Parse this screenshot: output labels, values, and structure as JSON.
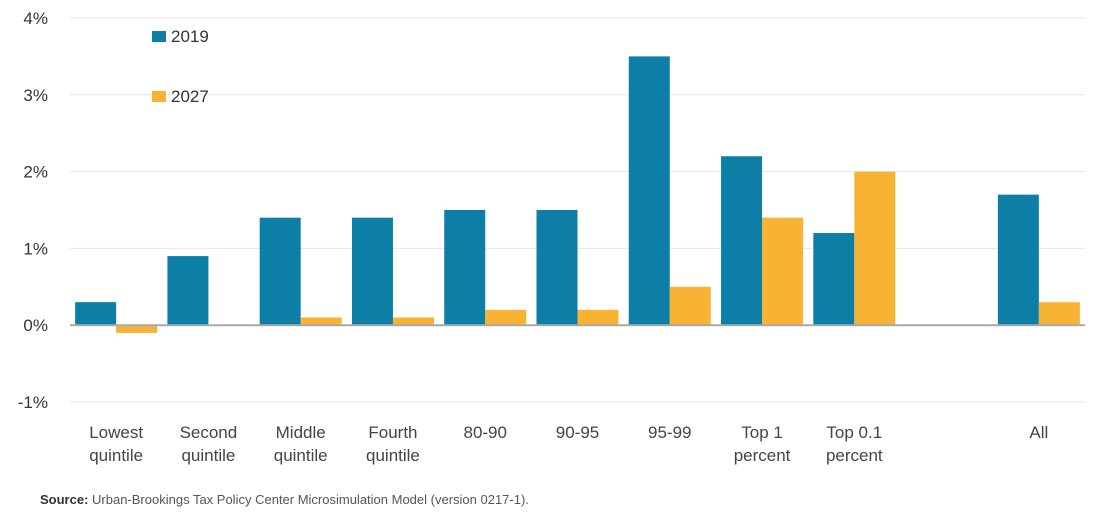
{
  "chart_data": {
    "type": "bar",
    "categories": [
      [
        "Lowest",
        "quintile"
      ],
      [
        "Second",
        "quintile"
      ],
      [
        "Middle",
        "quintile"
      ],
      [
        "Fourth",
        "quintile"
      ],
      [
        "80-90"
      ],
      [
        "90-95"
      ],
      [
        "95-99"
      ],
      [
        "Top 1",
        "percent"
      ],
      [
        "Top 0.1",
        "percent"
      ],
      [],
      [
        "All"
      ]
    ],
    "series": [
      {
        "name": "2019",
        "color": "#0d7ea6",
        "values": [
          0.3,
          0.9,
          1.4,
          1.4,
          1.5,
          1.5,
          3.5,
          2.2,
          1.2,
          null,
          1.7
        ]
      },
      {
        "name": "2027",
        "color": "#f8b234",
        "values": [
          -0.1,
          0.0,
          0.1,
          0.1,
          0.2,
          0.2,
          0.5,
          1.4,
          2.0,
          null,
          0.3
        ]
      }
    ],
    "ylim": [
      -1,
      4
    ],
    "yticks": [
      "-1%",
      "0%",
      "1%",
      "2%",
      "3%",
      "4%"
    ],
    "grid": true,
    "legend_position": "top-left"
  },
  "source": {
    "label": "Source:",
    "text": " Urban-Brookings Tax Policy Center Microsimulation Model (version 0217-1)."
  }
}
